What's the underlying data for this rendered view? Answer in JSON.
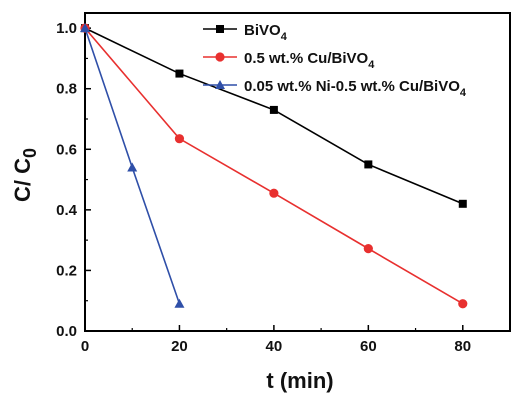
{
  "chart_data": {
    "type": "line",
    "title": "",
    "xlabel": "t (min)",
    "ylabel_main": "C/ C",
    "ylabel_sub": "0",
    "xlim": [
      0,
      90
    ],
    "ylim": [
      0,
      1.05
    ],
    "x_ticks": [
      0,
      20,
      40,
      60,
      80
    ],
    "y_ticks": [
      0.0,
      0.2,
      0.4,
      0.6,
      0.8,
      1.0
    ],
    "grid": false,
    "legend_position": "top-right",
    "series": [
      {
        "legend_main": "BiVO",
        "legend_sub": "4",
        "color": "#000000",
        "marker": "square",
        "x": [
          0,
          20,
          40,
          60,
          80
        ],
        "y": [
          1.0,
          0.85,
          0.73,
          0.55,
          0.42
        ]
      },
      {
        "legend_main": "0.5 wt.% Cu/BiVO",
        "legend_sub": "4",
        "color": "#e8302f",
        "marker": "circle",
        "x": [
          0,
          20,
          40,
          60,
          80
        ],
        "y": [
          1.0,
          0.635,
          0.455,
          0.272,
          0.09
        ]
      },
      {
        "legend_main": "0.05 wt.% Ni-0.5 wt.% Cu/BiVO",
        "legend_sub": "4",
        "color": "#2f4fa8",
        "marker": "triangle",
        "x": [
          0,
          10,
          20
        ],
        "y": [
          1.0,
          0.54,
          0.09
        ]
      }
    ]
  }
}
